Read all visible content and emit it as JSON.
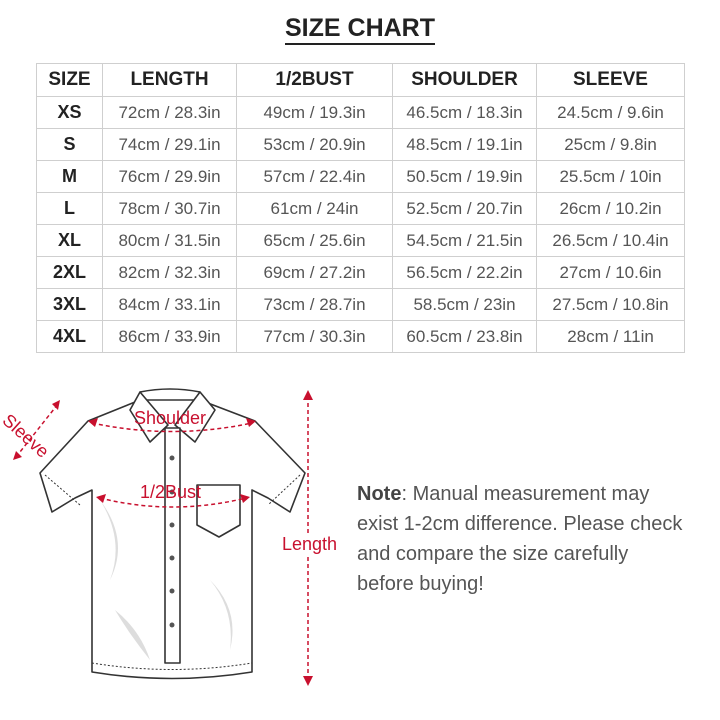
{
  "title": "SIZE CHART",
  "table": {
    "headers": [
      "SIZE",
      "LENGTH",
      "1/2BUST",
      "SHOULDER",
      "SLEEVE"
    ],
    "rows": [
      [
        "XS",
        "72cm / 28.3in",
        "49cm / 19.3in",
        "46.5cm / 18.3in",
        "24.5cm / 9.6in"
      ],
      [
        "S",
        "74cm / 29.1in",
        "53cm / 20.9in",
        "48.5cm / 19.1in",
        "25cm / 9.8in"
      ],
      [
        "M",
        "76cm / 29.9in",
        "57cm / 22.4in",
        "50.5cm / 19.9in",
        "25.5cm / 10in"
      ],
      [
        "L",
        "78cm / 30.7in",
        "61cm / 24in",
        "52.5cm / 20.7in",
        "26cm / 10.2in"
      ],
      [
        "XL",
        "80cm / 31.5in",
        "65cm / 25.6in",
        "54.5cm / 21.5in",
        "26.5cm / 10.4in"
      ],
      [
        "2XL",
        "82cm / 32.3in",
        "69cm / 27.2in",
        "56.5cm / 22.2in",
        "27cm / 10.6in"
      ],
      [
        "3XL",
        "84cm / 33.1in",
        "73cm / 28.7in",
        "58.5cm / 23in",
        "27.5cm / 10.8in"
      ],
      [
        "4XL",
        "86cm / 33.9in",
        "77cm / 30.3in",
        "60.5cm / 23.8in",
        "28cm / 11in"
      ]
    ]
  },
  "diagram": {
    "labels": {
      "sleeve": "Sleeve",
      "shoulder": "Shoulder",
      "bust": "1/2Bust",
      "length": "Length"
    },
    "accent_color": "#c8102e"
  },
  "note": {
    "label": "Note",
    "text": ": Manual measurement may exist 1-2cm difference. Please check and compare the size carefully before buying!"
  }
}
